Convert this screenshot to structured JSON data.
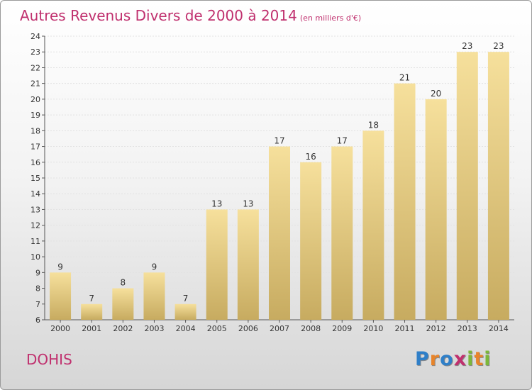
{
  "title": "Autres Revenus Divers de 2000 à 2014",
  "title_unit": "(en milliers d'€)",
  "commune": "DOHIS",
  "logo": {
    "text": "Proxiti",
    "letters": [
      {
        "ch": "P",
        "color": "#2f7fc8"
      },
      {
        "ch": "r",
        "color": "#e8842a"
      },
      {
        "ch": "o",
        "color": "#2f7fc8"
      },
      {
        "ch": "x",
        "color": "#c0306e"
      },
      {
        "ch": "i",
        "color": "#7cb83a"
      },
      {
        "ch": "t",
        "color": "#e8842a"
      },
      {
        "ch": "i",
        "color": "#7cb83a"
      }
    ]
  },
  "colors": {
    "title": "#c0306e",
    "bar_top": "#f6e09c",
    "bar_bottom": "#c7ab60"
  },
  "chart_data": {
    "type": "bar",
    "title": "Autres Revenus Divers de 2000 à 2014",
    "subtitle": "(en milliers d'€)",
    "categories": [
      "2000",
      "2001",
      "2002",
      "2003",
      "2004",
      "2005",
      "2006",
      "2007",
      "2008",
      "2009",
      "2010",
      "2011",
      "2012",
      "2013",
      "2014"
    ],
    "values": [
      9,
      7,
      8,
      9,
      7,
      13,
      13,
      17,
      16,
      17,
      18,
      21,
      20,
      23,
      23
    ],
    "ylim": [
      6,
      24
    ],
    "yticks": [
      6,
      7,
      8,
      9,
      10,
      11,
      12,
      13,
      14,
      15,
      16,
      17,
      18,
      19,
      20,
      21,
      22,
      23,
      24
    ],
    "grid": true,
    "xlabel": "",
    "ylabel": ""
  }
}
